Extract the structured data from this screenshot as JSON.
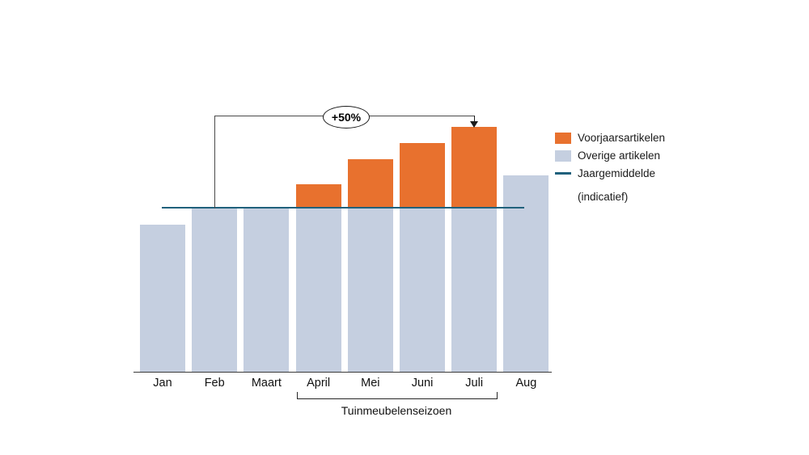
{
  "chart_data": {
    "type": "bar",
    "stacked": true,
    "categories": [
      "Jan",
      "Feb",
      "Maart",
      "April",
      "Mei",
      "Juni",
      "Juli",
      "Aug"
    ],
    "bars": [
      {
        "month": "Jan",
        "value": 90,
        "category": "overige"
      },
      {
        "month": "Feb",
        "value": 100,
        "category": "overige"
      },
      {
        "month": "Maart",
        "value": 100,
        "category": "overige"
      },
      {
        "month": "April",
        "value": 115,
        "category": "voorjaar"
      },
      {
        "month": "Mei",
        "value": 130,
        "category": "voorjaar"
      },
      {
        "month": "Juni",
        "value": 140,
        "category": "voorjaar"
      },
      {
        "month": "Juli",
        "value": 150,
        "category": "voorjaar"
      },
      {
        "month": "Aug",
        "value": 120,
        "category": "overige"
      }
    ],
    "average_line": {
      "label": "Jaargemiddelde",
      "value": 100
    },
    "annotation": {
      "text": "+50%",
      "from_month": "Feb",
      "to_month": "Juli"
    },
    "bracket": {
      "label": "Tuinmeubelenseizoen",
      "from_month": "April",
      "to_month": "Juli"
    },
    "legend": [
      {
        "label": "Voorjaarsartikelen",
        "swatch": "orange-square"
      },
      {
        "label": "Overige artikelen",
        "swatch": "blue-square"
      },
      {
        "label": "Jaargemiddelde",
        "swatch": "teal-line"
      }
    ],
    "note": "(indicatief)",
    "colors": {
      "voorjaar": "#E8712E",
      "overige": "#C5CFE0",
      "average": "#20617C"
    }
  }
}
